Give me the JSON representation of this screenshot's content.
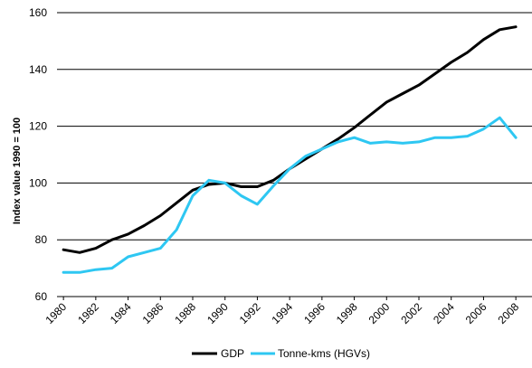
{
  "chart_data": {
    "type": "line",
    "ylabel": "Index value 1990 = 100",
    "ylim": [
      60,
      160
    ],
    "yticks": [
      60,
      80,
      100,
      120,
      140,
      160
    ],
    "xlim": [
      1979.6,
      2009.0
    ],
    "xticks": [
      1980,
      1982,
      1984,
      1986,
      1988,
      1990,
      1992,
      1994,
      1996,
      1998,
      2000,
      2002,
      2004,
      2006,
      2008
    ],
    "grid": "horizontal",
    "legend": "bottom",
    "x": [
      1980,
      1981,
      1982,
      1983,
      1984,
      1985,
      1986,
      1987,
      1988,
      1989,
      1990,
      1991,
      1992,
      1993,
      1994,
      1995,
      1996,
      1997,
      1998,
      1999,
      2000,
      2001,
      2002,
      2003,
      2004,
      2005,
      2006,
      2007,
      2008
    ],
    "series": [
      {
        "name": "GDP",
        "color": "#000000",
        "values": [
          76.5,
          75.5,
          77,
          80,
          82,
          85,
          88.5,
          93,
          97.5,
          99.5,
          100,
          98.7,
          98.7,
          101,
          105,
          108.5,
          112,
          115.5,
          119.5,
          124,
          128.5,
          131.5,
          134.5,
          138.5,
          142.5,
          146,
          150.5,
          154,
          155
        ]
      },
      {
        "name": "Tonne-kms (HGVs)",
        "color": "#2ec7f2",
        "values": [
          68.5,
          68.5,
          69.5,
          70,
          74,
          75.5,
          77,
          83.5,
          95.5,
          101,
          100,
          95.5,
          92.5,
          99,
          105,
          109.5,
          112,
          114.5,
          116,
          114,
          114.5,
          114,
          114.5,
          116,
          116,
          116.5,
          119,
          123,
          116
        ]
      }
    ]
  }
}
